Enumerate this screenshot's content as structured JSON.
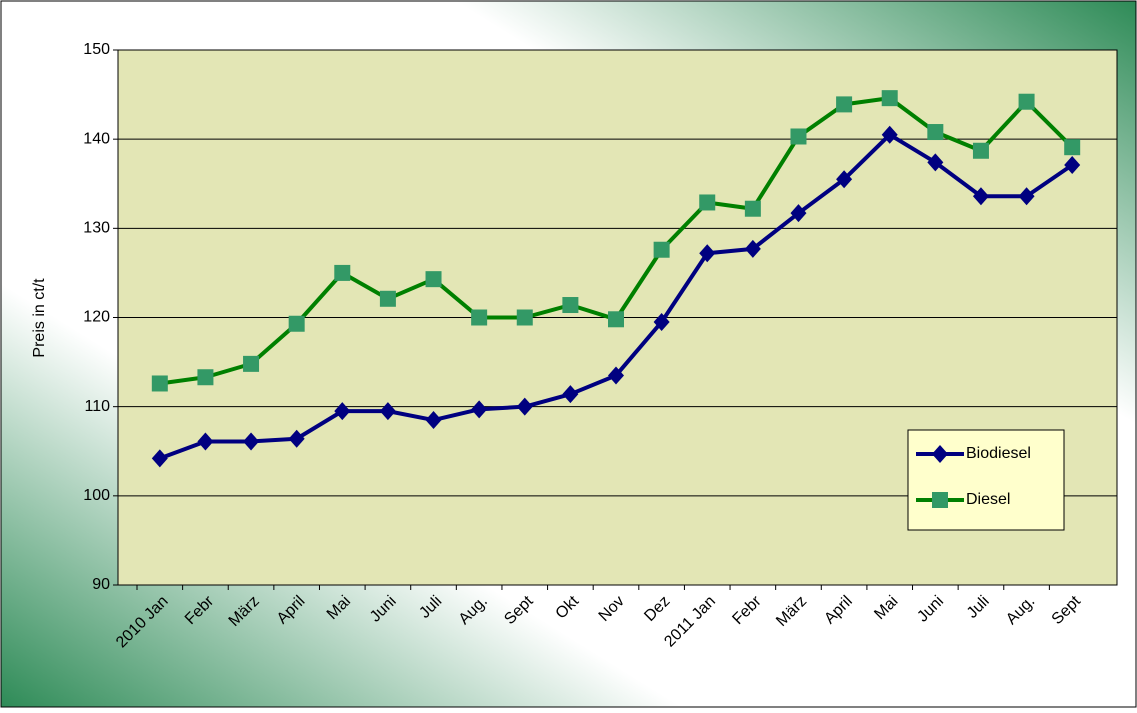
{
  "chart_data": {
    "type": "line",
    "y_label": "Preis in ct/t",
    "categories": [
      "2010 Jan",
      "Febr",
      "März",
      "April",
      "Mai",
      "Juni",
      "Juli",
      "Aug.",
      "Sept",
      "Okt",
      "Nov",
      "Dez",
      "2011 Jan",
      "Febr",
      "März",
      "April",
      "Mai",
      "Juni",
      "Juli",
      "Aug.",
      "Sept"
    ],
    "series": [
      {
        "name": "Biodiesel",
        "color": "#000080",
        "marker": "diamond",
        "values": [
          104.2,
          106.1,
          106.1,
          106.4,
          109.5,
          109.5,
          108.5,
          109.7,
          110,
          111.4,
          113.5,
          119.5,
          127.2,
          127.7,
          131.7,
          135.5,
          140.5,
          137.4,
          133.6,
          133.6,
          137.1
        ]
      },
      {
        "name": "Diesel",
        "color": "#008000",
        "marker": "square",
        "marker_color": "#339966",
        "values": [
          112.6,
          113.3,
          114.8,
          119.3,
          125,
          122.1,
          124.3,
          120,
          120,
          121.4,
          119.8,
          127.6,
          132.9,
          132.2,
          140.3,
          143.9,
          144.6,
          140.8,
          138.7,
          144.2,
          139.1
        ]
      }
    ],
    "ylim": [
      90,
      150
    ],
    "yticks": [
      90,
      100,
      110,
      120,
      130,
      140,
      150
    ],
    "grid": true,
    "legend": "right"
  }
}
